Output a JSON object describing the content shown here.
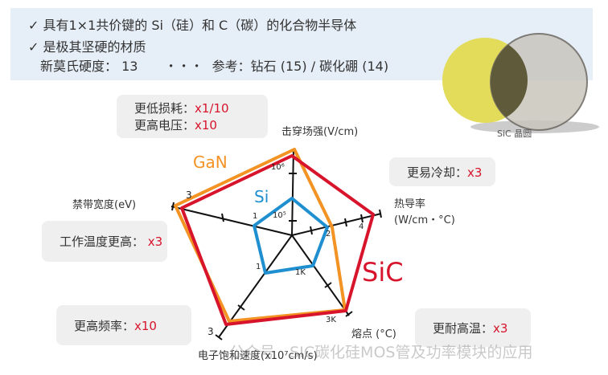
{
  "bullets": [
    {
      "icon": "check-icon",
      "text": "具有1×1共价键的 Si（硅）和 C（碳）的化合物半导体"
    },
    {
      "icon": "check-icon",
      "text": "是极其坚硬的材质"
    }
  ],
  "hardness": {
    "label": "新莫氏硬度：",
    "value": "13",
    "dots": "・・・",
    "ref": "参考：钻石 (15) / 碳化硼 (14)"
  },
  "wafer": {
    "caption": "SiC 晶圆"
  },
  "callouts": {
    "loss": {
      "label": "更低损耗：",
      "value": "x1/10"
    },
    "voltage": {
      "label": "更高电压：",
      "value": "x10"
    },
    "cooling": {
      "label": "更易冷却：",
      "value": "x3"
    },
    "temp": {
      "label": "工作温度更高：",
      "value": "x3"
    },
    "freq": {
      "label": "更高频率：",
      "value": "x10"
    },
    "heat": {
      "label": "更耐高温：",
      "value": "x3"
    }
  },
  "axes": {
    "breakdown": "击穿场强(V/cm)",
    "thermal": "热导率",
    "thermal_unit": "(W/cm・°C)",
    "melting": "熔点 (°C)",
    "saturation": "电子饱和速度(x10⁷cm/s)",
    "bandgap": "禁带宽度(eV)"
  },
  "ticks": {
    "e6": "10⁶",
    "e5": "10⁵",
    "bg3": "3",
    "bg1": "1",
    "tc2": "2",
    "tc4": "4",
    "mp1": "1K",
    "mp3": "3K",
    "sv1": "1",
    "sv3": "3"
  },
  "series": [
    {
      "name": "SiC",
      "color": "#d7142b"
    },
    {
      "name": "GaN",
      "color": "#f39323"
    },
    {
      "name": "Si",
      "color": "#1f8fd0"
    }
  ],
  "watermark": "公众号 · SIC碳化硅MOS管及功率模块的应用"
}
